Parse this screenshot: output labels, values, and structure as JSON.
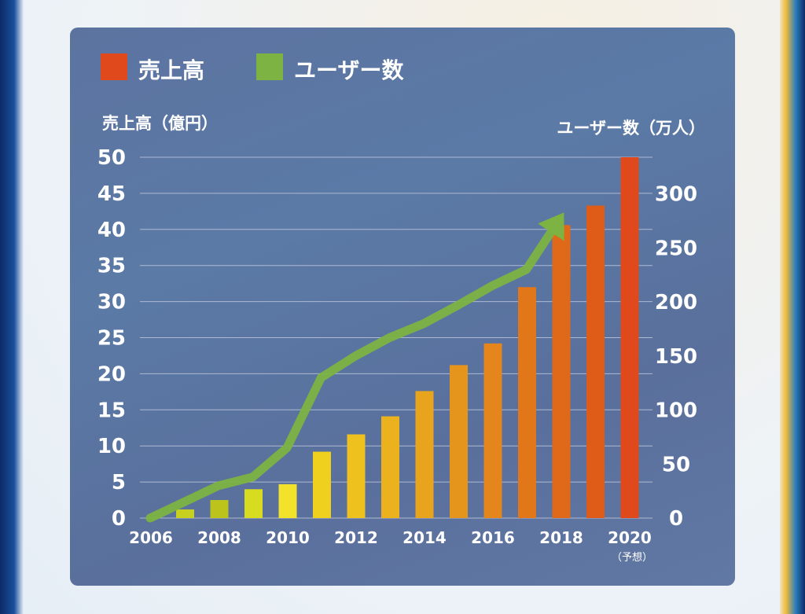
{
  "chart_data": {
    "type": "bar",
    "legend": [
      {
        "label": "売上高",
        "color": "#e0491b"
      },
      {
        "label": "ユーザー数",
        "color": "#7cb342"
      }
    ],
    "y_left_label": "売上高（億円）",
    "y_right_label": "ユーザー数（万人）",
    "y_left_ticks": [
      "0",
      "5",
      "10",
      "15",
      "20",
      "25",
      "30",
      "35",
      "40",
      "45",
      "50"
    ],
    "y_right_ticks": [
      "0",
      "50",
      "100",
      "150",
      "200",
      "250",
      "300"
    ],
    "x_tick_labels": [
      "2006",
      "2008",
      "2010",
      "2012",
      "2014",
      "2016",
      "2018",
      "2020"
    ],
    "x_note": "（予想）",
    "ylim_left": [
      0,
      50
    ],
    "ylim_right": [
      0,
      334
    ],
    "years": [
      2006,
      2007,
      2008,
      2009,
      2010,
      2011,
      2012,
      2013,
      2014,
      2015,
      2016,
      2017,
      2018,
      2019,
      2020
    ],
    "revenue": [
      0,
      1.2,
      2.5,
      4,
      4.7,
      9.2,
      11.6,
      14.1,
      17.6,
      21.2,
      24.2,
      32,
      40.6,
      43.3,
      50
    ],
    "users": [
      0,
      15,
      30,
      38,
      65,
      130,
      150,
      167,
      180,
      197,
      215,
      230,
      278
    ],
    "bar_colors": [
      "#e8e020",
      "#c8d01f",
      "#bcc41c",
      "#d8dc20",
      "#f2e22a",
      "#f0d01f",
      "#efc11f",
      "#ebb21e",
      "#e8a41d",
      "#e6951c",
      "#e4861b",
      "#e2771a",
      "#e06919",
      "#de5b18",
      "#e0491b"
    ]
  }
}
